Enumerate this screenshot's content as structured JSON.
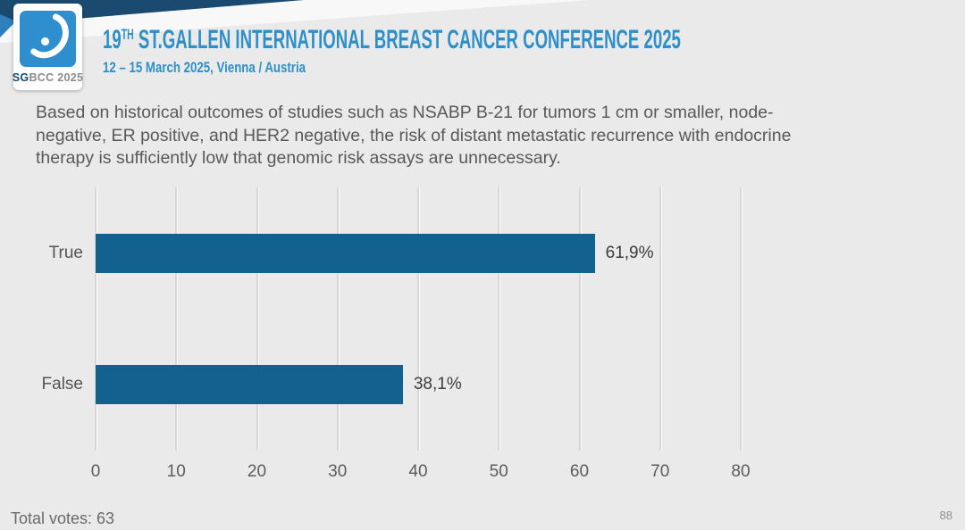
{
  "header": {
    "title": {
      "prefix": "19",
      "sup": "TH",
      "rest": " ST.GALLEN INTERNATIONAL BREAST CANCER CONFERENCE 2025"
    },
    "subtitle": "12 – 15 March 2025, Vienna / Austria",
    "logo": {
      "sg": "SG",
      "rest": "BCC 2025"
    }
  },
  "question": "Based on historical outcomes of studies such as NSABP B-21 for tumors 1 cm or smaller, node-\nnegative, ER positive, and HER2 negative, the risk of distant metastatic recurrence with endocrine\ntherapy is sufficiently low that genomic risk assays are unnecessary.",
  "chart_data": {
    "type": "bar",
    "orientation": "horizontal",
    "title": "",
    "xlabel": "",
    "ylabel": "",
    "categories": [
      "True",
      "False"
    ],
    "values": [
      61.9,
      38.1
    ],
    "value_labels": [
      "61,9%",
      "38,1%"
    ],
    "xlim": [
      0,
      80
    ],
    "xticks": [
      0,
      10,
      20,
      30,
      40,
      50,
      60,
      70,
      80
    ],
    "grid": true,
    "legend": false,
    "bar_color": "#12618f"
  },
  "footer": {
    "total_votes_label": "Total votes: 63",
    "page_number": "88"
  },
  "colors": {
    "accent_blue": "#2e8fc9",
    "navy": "#1b4a70",
    "logo_blue": "#2f8fce",
    "bar_blue": "#12618f",
    "background": "#eaeaea",
    "text_gray": "#595959"
  }
}
